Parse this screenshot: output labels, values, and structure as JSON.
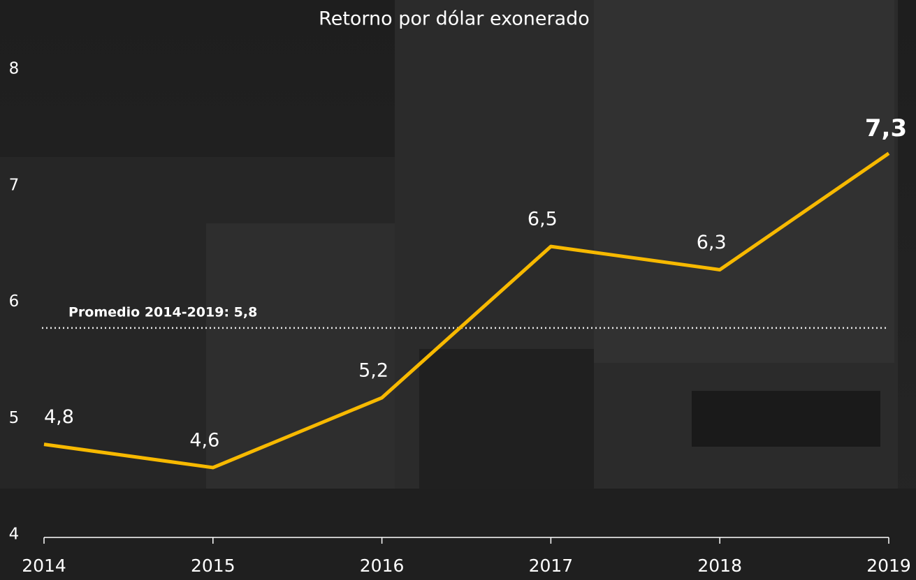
{
  "chart_data": {
    "type": "line",
    "title": "Retorno por dólar exonerado",
    "x": [
      2014,
      2015,
      2016,
      2017,
      2018,
      2019
    ],
    "values": [
      4.8,
      4.6,
      5.2,
      6.5,
      6.3,
      7.3
    ],
    "value_labels": [
      "4,8",
      "4,6",
      "5,2",
      "6,5",
      "6,3",
      "7,3"
    ],
    "color": "#f7b900",
    "xlim": [
      2014,
      2019
    ],
    "xticks": [
      2014,
      2015,
      2016,
      2017,
      2018,
      2019
    ],
    "ylim": [
      4,
      8
    ],
    "yticks": [
      4,
      5,
      6,
      7,
      8
    ],
    "annotation": {
      "text": "Promedio 2014-2019: 5,8",
      "value": 5.8
    }
  }
}
